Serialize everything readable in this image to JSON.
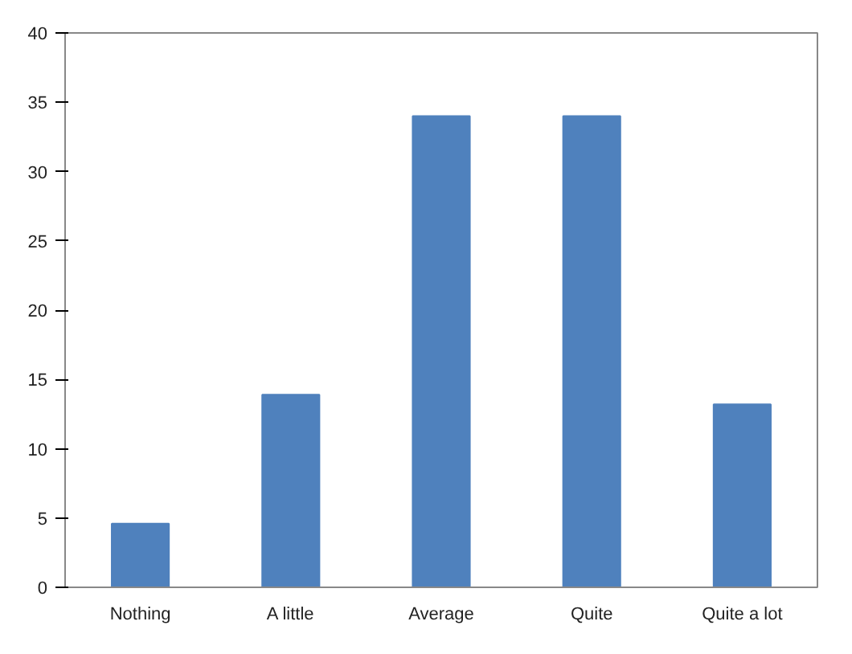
{
  "chart_data": {
    "type": "bar",
    "categories": [
      "Nothing",
      "A little",
      "Average",
      "Quite",
      "Quite a lot"
    ],
    "values": [
      4.6,
      13.9,
      34,
      34,
      13.2
    ],
    "color": "#4f81bd",
    "ylim": [
      0,
      40
    ],
    "yticks": [
      0,
      5,
      10,
      15,
      20,
      25,
      30,
      35,
      40
    ],
    "grid": false
  }
}
